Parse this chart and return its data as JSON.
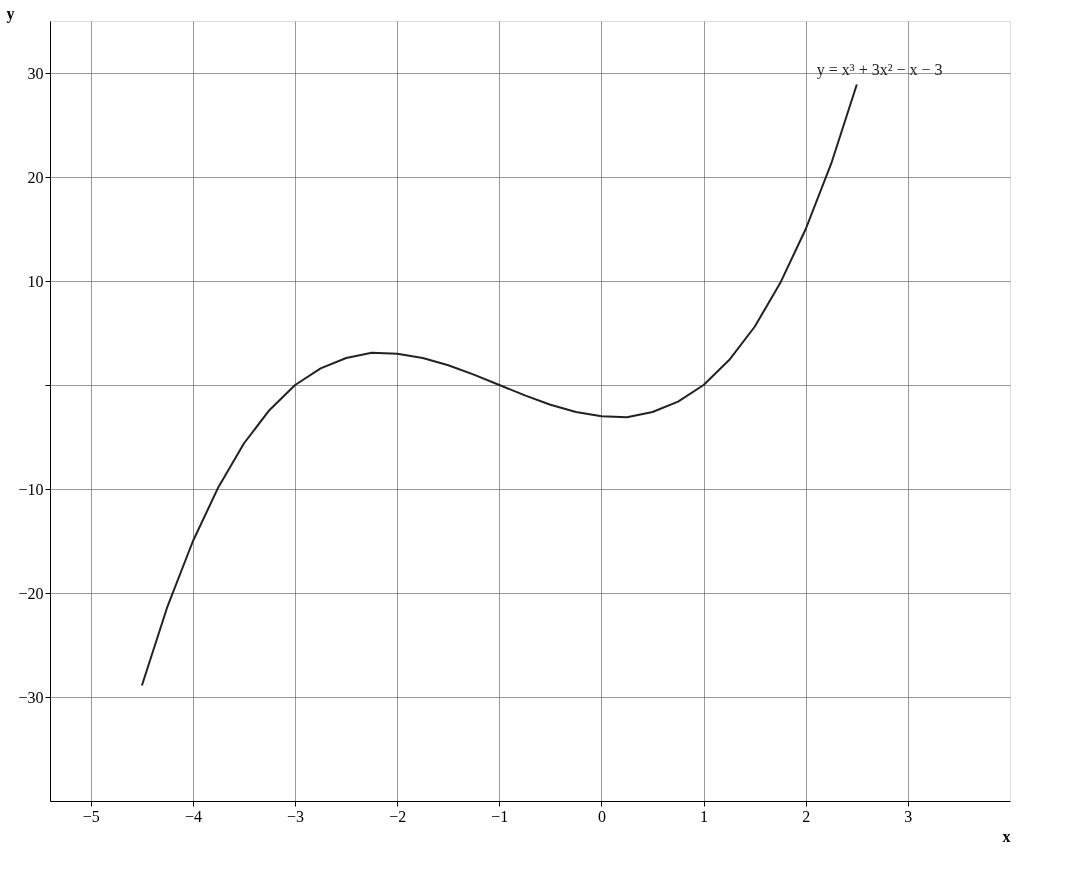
{
  "chart_data": {
    "type": "line",
    "xlabel": "x",
    "ylabel": "y",
    "xlim": [
      -5.4,
      4.0
    ],
    "ylim": [
      -40,
      35
    ],
    "xticks": [
      -5,
      -4,
      -3,
      -2,
      -1,
      0,
      1,
      2,
      3
    ],
    "yticks": [
      -30,
      -20,
      -10,
      {
        "value": 0,
        "label": null
      },
      10,
      20,
      30
    ],
    "grid": true,
    "series": [
      {
        "name": "y = x³ + 3x² − x − 3",
        "color": "#222222",
        "x": [
          -4.5,
          -4.25,
          -4,
          -3.75,
          -3.5,
          -3.25,
          -3,
          -2.75,
          -2.5,
          -2.25,
          -2,
          -1.75,
          -1.5,
          -1.25,
          -1,
          -0.75,
          -0.5,
          -0.25,
          0,
          0.25,
          0.5,
          0.75,
          1,
          1.25,
          1.5,
          1.75,
          2,
          2.25,
          2.5
        ],
        "values": [
          -28.9,
          -21.3,
          -15,
          -9.8,
          -5.6,
          -2.4,
          0,
          1.6,
          2.6,
          3.1,
          3,
          2.6,
          1.9,
          1,
          0,
          -1,
          -1.9,
          -2.6,
          -3,
          -3.1,
          -2.6,
          -1.6,
          0,
          2.4,
          5.6,
          9.8,
          15,
          21.3,
          28.9
        ]
      }
    ]
  }
}
